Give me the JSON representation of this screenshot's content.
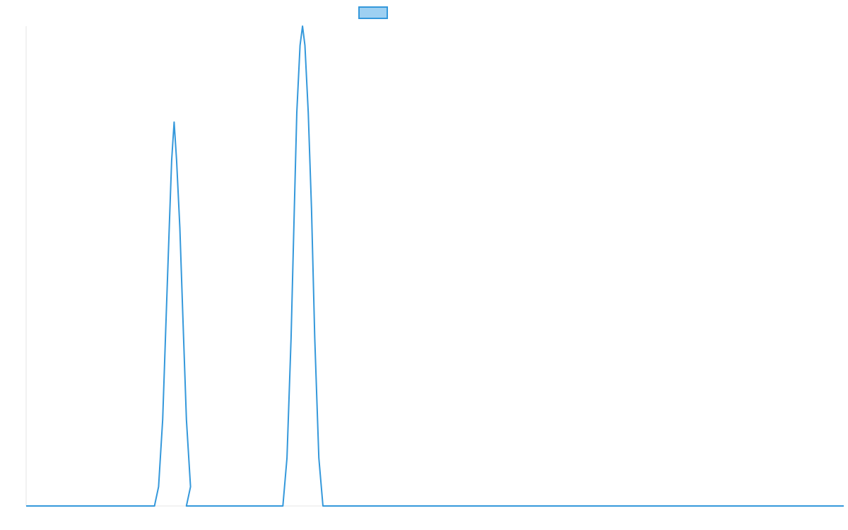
{
  "colors": {
    "series_line": "#3498db",
    "legend_fill": "#9ed0f2",
    "axis_line": "#e6e6e6"
  },
  "chart_data": {
    "type": "line",
    "title": "",
    "xlabel": "",
    "ylabel": "",
    "grid": false,
    "legend": {
      "placement": "top-center",
      "show_label": false
    },
    "xlim": [
      0,
      100
    ],
    "ylim": [
      0,
      100
    ],
    "series": [
      {
        "points": [
          [
            0,
            0
          ],
          [
            15.7,
            0
          ],
          [
            16.2,
            4
          ],
          [
            16.7,
            18
          ],
          [
            17.1,
            38
          ],
          [
            17.5,
            58
          ],
          [
            17.8,
            72
          ],
          [
            18.1,
            80
          ],
          [
            18.4,
            72
          ],
          [
            18.8,
            58
          ],
          [
            19.2,
            38
          ],
          [
            19.6,
            18
          ],
          [
            20.1,
            4
          ],
          [
            19.6,
            0
          ],
          [
            20.6,
            0
          ],
          [
            31.4,
            0
          ],
          [
            31.9,
            10
          ],
          [
            32.4,
            35
          ],
          [
            32.8,
            62
          ],
          [
            33.1,
            82
          ],
          [
            33.5,
            96
          ],
          [
            33.8,
            100
          ],
          [
            34.1,
            96
          ],
          [
            34.5,
            82
          ],
          [
            34.9,
            62
          ],
          [
            35.3,
            35
          ],
          [
            35.8,
            10
          ],
          [
            36.3,
            0
          ],
          [
            100,
            0
          ]
        ]
      }
    ]
  }
}
